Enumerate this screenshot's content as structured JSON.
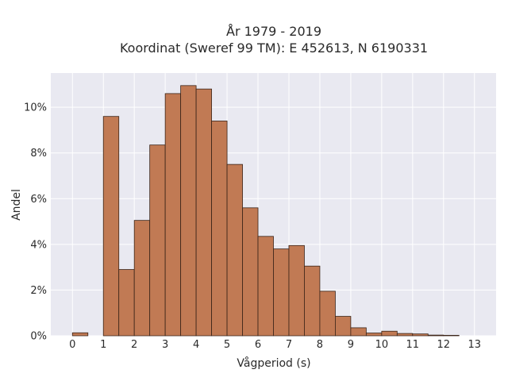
{
  "chart_data": {
    "type": "bar",
    "title": [
      "År 1979 - 2019",
      "Koordinat (Sweref 99 TM): E 452613, N 6190331"
    ],
    "xlabel": "Vågperiod (s)",
    "ylabel": "Andel",
    "bin_width": 0.5,
    "x": [
      0,
      1,
      1.5,
      2,
      2.5,
      3,
      3.5,
      4,
      4.5,
      5,
      5.5,
      6,
      6.5,
      7,
      7.5,
      8,
      8.5,
      9,
      9.5,
      10,
      10.5,
      11,
      11.5,
      12
    ],
    "values": [
      0.13,
      9.6,
      2.9,
      5.05,
      8.35,
      10.6,
      10.95,
      10.8,
      9.4,
      7.5,
      5.6,
      4.35,
      3.8,
      3.95,
      3.05,
      1.95,
      0.85,
      0.35,
      0.12,
      0.2,
      0.1,
      0.08,
      0.03,
      0.02
    ],
    "x_ticks": [
      "0",
      "1",
      "2",
      "3",
      "4",
      "5",
      "6",
      "7",
      "8",
      "9",
      "10",
      "11",
      "12",
      "13"
    ],
    "y_ticks": [
      "0%",
      "2%",
      "4%",
      "6%",
      "8%",
      "10%"
    ],
    "xlim": [
      -0.7,
      13.7
    ],
    "ylim": [
      0,
      11.5
    ],
    "grid": true,
    "colors": {
      "bar": "#c17a54",
      "bar_edge": "#3a2418",
      "plot_bg": "#e9e9f1",
      "grid": "#ffffff"
    }
  }
}
